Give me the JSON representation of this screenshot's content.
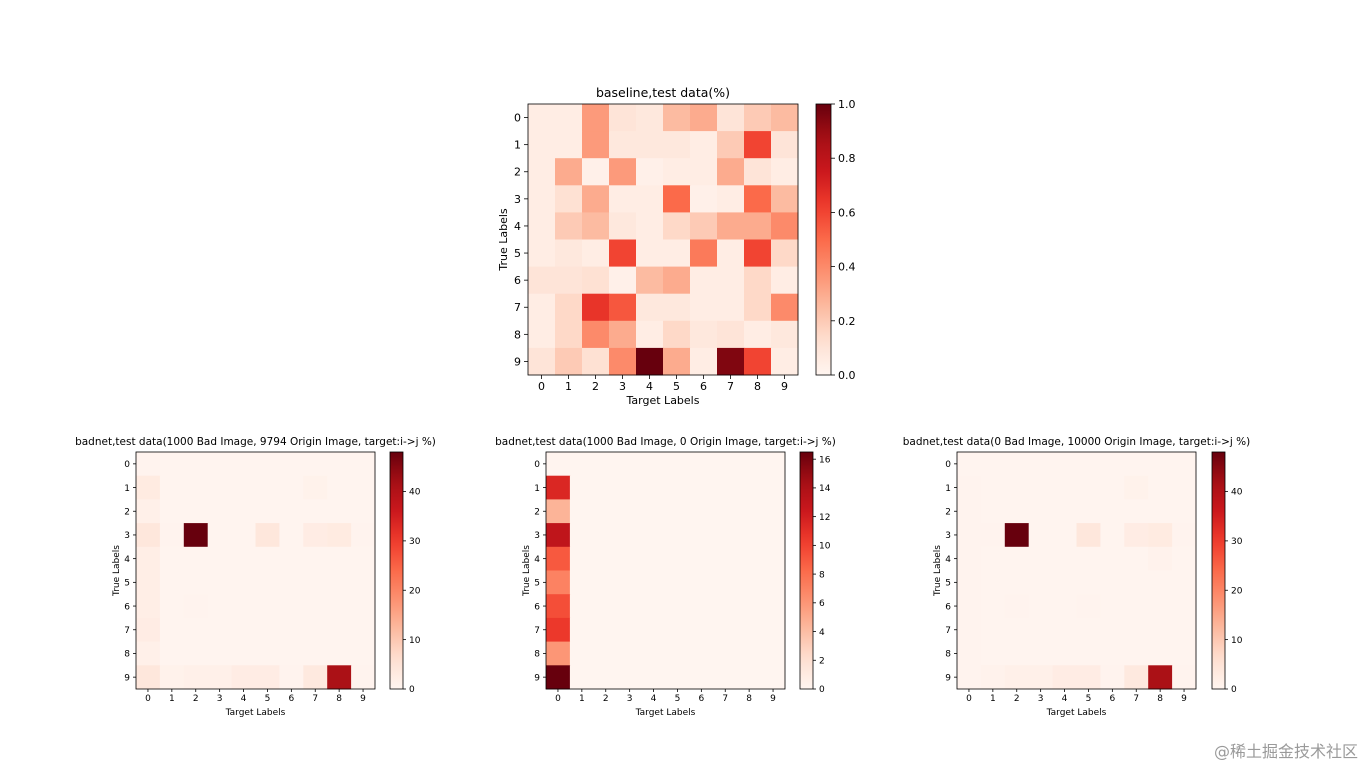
{
  "watermark": "@稀土掘金技术社区",
  "chart_data": [
    {
      "type": "heatmap",
      "title": "baseline,test data(%)",
      "xlabel": "Target Labels",
      "ylabel": "True Labels",
      "x_ticks": [
        "0",
        "1",
        "2",
        "3",
        "4",
        "5",
        "6",
        "7",
        "8",
        "9"
      ],
      "y_ticks": [
        "0",
        "1",
        "2",
        "3",
        "4",
        "5",
        "6",
        "7",
        "8",
        "9"
      ],
      "colormap": "Reds",
      "vmin": 0,
      "vmax": 1.0,
      "colorbar_ticks": [
        "0.0",
        "0.2",
        "0.4",
        "0.6",
        "0.8",
        "1.0"
      ],
      "colorbar_tick_values": [
        0,
        0.2,
        0.4,
        0.6,
        0.8,
        1.0
      ],
      "values": [
        [
          0.05,
          0.05,
          0.35,
          0.1,
          0.08,
          0.25,
          0.3,
          0.1,
          0.2,
          0.25
        ],
        [
          0.05,
          0.05,
          0.35,
          0.08,
          0.08,
          0.08,
          0.05,
          0.2,
          0.6,
          0.1
        ],
        [
          0.05,
          0.3,
          0.03,
          0.35,
          0.03,
          0.05,
          0.05,
          0.3,
          0.1,
          0.05
        ],
        [
          0.05,
          0.12,
          0.3,
          0.05,
          0.05,
          0.5,
          0.03,
          0.05,
          0.5,
          0.25
        ],
        [
          0.05,
          0.2,
          0.25,
          0.08,
          0.05,
          0.15,
          0.2,
          0.3,
          0.3,
          0.4
        ],
        [
          0.05,
          0.08,
          0.05,
          0.6,
          0.05,
          0.05,
          0.45,
          0.05,
          0.6,
          0.15
        ],
        [
          0.1,
          0.1,
          0.12,
          0.03,
          0.25,
          0.3,
          0.05,
          0.05,
          0.15,
          0.05
        ],
        [
          0.05,
          0.15,
          0.65,
          0.55,
          0.08,
          0.08,
          0.05,
          0.05,
          0.15,
          0.4
        ],
        [
          0.05,
          0.15,
          0.4,
          0.3,
          0.05,
          0.15,
          0.08,
          0.1,
          0.05,
          0.08
        ],
        [
          0.1,
          0.2,
          0.12,
          0.4,
          1.0,
          0.3,
          0.05,
          0.95,
          0.6,
          0.05
        ]
      ]
    },
    {
      "type": "heatmap",
      "title": "badnet,test data(1000 Bad Image, 9794 Origin Image, target:i->j %)",
      "xlabel": "Target Labels",
      "ylabel": "True Labels",
      "x_ticks": [
        "0",
        "1",
        "2",
        "3",
        "4",
        "5",
        "6",
        "7",
        "8",
        "9"
      ],
      "y_ticks": [
        "0",
        "1",
        "2",
        "3",
        "4",
        "5",
        "6",
        "7",
        "8",
        "9"
      ],
      "colormap": "Reds",
      "vmin": 0,
      "vmax": 48,
      "colorbar_ticks": [
        "0",
        "10",
        "20",
        "30",
        "40"
      ],
      "colorbar_tick_values": [
        0,
        10,
        20,
        30,
        40
      ],
      "values": [
        [
          0.5,
          0.3,
          0.3,
          0.3,
          0.3,
          0.3,
          0.3,
          0.3,
          0.3,
          0.3
        ],
        [
          3.0,
          0.3,
          0.3,
          0.3,
          0.3,
          0.3,
          0.3,
          1.0,
          0.3,
          0.3
        ],
        [
          1.5,
          0.3,
          0.3,
          0.3,
          0.3,
          0.3,
          0.3,
          0.3,
          0.3,
          0.3
        ],
        [
          4.0,
          0.5,
          48.0,
          0.3,
          0.3,
          4.0,
          0.3,
          2.5,
          3.0,
          0.5
        ],
        [
          2.0,
          0.3,
          0.3,
          0.3,
          0.3,
          0.3,
          0.3,
          0.3,
          0.3,
          0.3
        ],
        [
          2.0,
          0.3,
          0.3,
          0.3,
          0.3,
          0.3,
          0.3,
          0.3,
          0.3,
          0.3
        ],
        [
          2.0,
          0.3,
          0.5,
          0.3,
          0.3,
          0.3,
          0.3,
          0.3,
          0.3,
          0.3
        ],
        [
          2.5,
          0.3,
          0.3,
          0.3,
          0.3,
          0.3,
          0.3,
          0.3,
          0.3,
          0.3
        ],
        [
          1.5,
          0.3,
          0.3,
          0.3,
          0.3,
          0.3,
          0.3,
          0.3,
          0.3,
          0.3
        ],
        [
          4.0,
          1.0,
          1.5,
          1.5,
          2.5,
          2.5,
          0.5,
          3.5,
          41.0,
          0.5
        ]
      ]
    },
    {
      "type": "heatmap",
      "title": "badnet,test data(1000 Bad Image, 0 Origin Image, target:i->j %)",
      "xlabel": "Target Labels",
      "ylabel": "True Labels",
      "x_ticks": [
        "0",
        "1",
        "2",
        "3",
        "4",
        "5",
        "6",
        "7",
        "8",
        "9"
      ],
      "y_ticks": [
        "0",
        "1",
        "2",
        "3",
        "4",
        "5",
        "6",
        "7",
        "8",
        "9"
      ],
      "colormap": "Reds",
      "vmin": 0,
      "vmax": 16.5,
      "colorbar_ticks": [
        "0",
        "2",
        "4",
        "6",
        "8",
        "10",
        "12",
        "14",
        "16"
      ],
      "colorbar_tick_values": [
        0,
        2,
        4,
        6,
        8,
        10,
        12,
        14,
        16
      ],
      "values": [
        [
          0.1,
          0,
          0,
          0,
          0,
          0,
          0,
          0,
          0,
          0
        ],
        [
          11.5,
          0,
          0,
          0,
          0,
          0,
          0,
          0,
          0,
          0
        ],
        [
          4.5,
          0,
          0,
          0,
          0,
          0,
          0,
          0,
          0,
          0
        ],
        [
          13.0,
          0,
          0,
          0,
          0,
          0,
          0,
          0,
          0,
          0
        ],
        [
          9.0,
          0,
          0,
          0,
          0,
          0,
          0,
          0,
          0,
          0
        ],
        [
          7.0,
          0,
          0,
          0,
          0,
          0,
          0,
          0,
          0,
          0
        ],
        [
          9.5,
          0,
          0,
          0,
          0,
          0,
          0,
          0,
          0,
          0
        ],
        [
          10.5,
          0,
          0,
          0,
          0,
          0,
          0,
          0,
          0,
          0
        ],
        [
          6.0,
          0,
          0,
          0,
          0,
          0,
          0,
          0,
          0,
          0
        ],
        [
          16.5,
          0,
          0,
          0,
          0,
          0,
          0,
          0,
          0,
          0
        ]
      ]
    },
    {
      "type": "heatmap",
      "title": "badnet,test data(0 Bad Image, 10000 Origin Image, target:i->j %)",
      "xlabel": "Target Labels",
      "ylabel": "True Labels",
      "x_ticks": [
        "0",
        "1",
        "2",
        "3",
        "4",
        "5",
        "6",
        "7",
        "8",
        "9"
      ],
      "y_ticks": [
        "0",
        "1",
        "2",
        "3",
        "4",
        "5",
        "6",
        "7",
        "8",
        "9"
      ],
      "colormap": "Reds",
      "vmin": 0,
      "vmax": 48,
      "colorbar_ticks": [
        "0",
        "10",
        "20",
        "30",
        "40"
      ],
      "colorbar_tick_values": [
        0,
        10,
        20,
        30,
        40
      ],
      "values": [
        [
          0.3,
          0.3,
          0.3,
          0.3,
          0.3,
          0.3,
          0.3,
          0.3,
          0.3,
          0.3
        ],
        [
          0.5,
          0.3,
          0.3,
          0.3,
          0.3,
          0.3,
          0.3,
          1.0,
          0.3,
          0.3
        ],
        [
          0.5,
          0.3,
          0.3,
          0.3,
          0.3,
          0.3,
          0.3,
          0.3,
          0.3,
          0.3
        ],
        [
          0.5,
          0.5,
          48.0,
          0.3,
          0.3,
          4.0,
          0.3,
          2.5,
          3.0,
          0.5
        ],
        [
          0.5,
          0.3,
          0.3,
          0.3,
          0.3,
          0.3,
          0.3,
          0.3,
          0.8,
          0.3
        ],
        [
          0.5,
          0.3,
          0.3,
          0.3,
          0.3,
          0.3,
          0.3,
          0.3,
          0.3,
          0.3
        ],
        [
          0.5,
          0.3,
          0.5,
          0.3,
          0.3,
          0.5,
          0.3,
          0.3,
          0.3,
          0.3
        ],
        [
          0.5,
          0.3,
          0.3,
          0.3,
          0.3,
          0.3,
          0.3,
          0.3,
          0.3,
          0.3
        ],
        [
          0.5,
          0.3,
          0.3,
          0.3,
          0.3,
          0.3,
          0.3,
          0.3,
          0.3,
          0.3
        ],
        [
          0.5,
          0.8,
          1.5,
          1.5,
          2.5,
          2.5,
          0.5,
          3.5,
          41.0,
          0.5
        ]
      ]
    }
  ]
}
